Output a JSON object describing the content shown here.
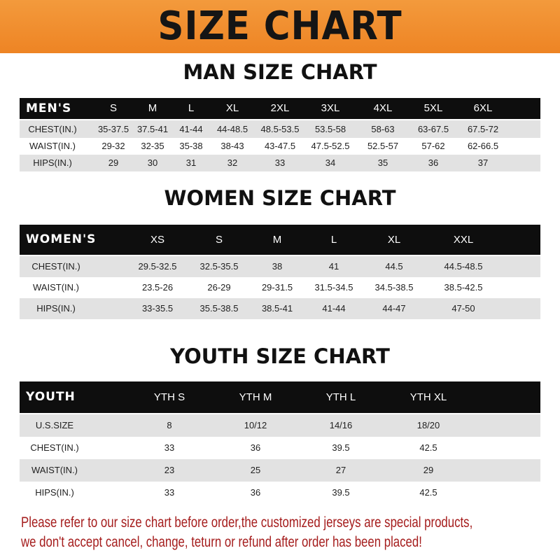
{
  "title": "SIZE CHART",
  "men": {
    "title": "MAN SIZE CHART",
    "header": [
      "MEN'S",
      "S",
      "M",
      "L",
      "XL",
      "2XL",
      "3XL",
      "4XL",
      "5XL",
      "6XL"
    ],
    "rows": [
      [
        "CHEST(IN.)",
        "35-37.5",
        "37.5-41",
        "41-44",
        "44-48.5",
        "48.5-53.5",
        "53.5-58",
        "58-63",
        "63-67.5",
        "67.5-72"
      ],
      [
        "WAIST(IN.)",
        "29-32",
        "32-35",
        "35-38",
        "38-43",
        "43-47.5",
        "47.5-52.5",
        "52.5-57",
        "57-62",
        "62-66.5"
      ],
      [
        "HIPS(IN.)",
        "29",
        "30",
        "31",
        "32",
        "33",
        "34",
        "35",
        "36",
        "37"
      ]
    ]
  },
  "women": {
    "title": "WOMEN SIZE CHART",
    "header": [
      "WOMEN'S",
      "XS",
      "S",
      "M",
      "L",
      "XL",
      "XXL"
    ],
    "rows": [
      [
        "CHEST(IN.)",
        "29.5-32.5",
        "32.5-35.5",
        "38",
        "41",
        "44.5",
        "44.5-48.5"
      ],
      [
        "WAIST(IN.)",
        "23.5-26",
        "26-29",
        "29-31.5",
        "31.5-34.5",
        "34.5-38.5",
        "38.5-42.5"
      ],
      [
        "HIPS(IN.)",
        "33-35.5",
        "35.5-38.5",
        "38.5-41",
        "41-44",
        "44-47",
        "47-50"
      ]
    ]
  },
  "youth": {
    "title": "YOUTH SIZE CHART",
    "header": [
      "YOUTH",
      "YTH S",
      "YTH M",
      "YTH L",
      "YTH XL"
    ],
    "rows": [
      [
        "U.S.SIZE",
        "8",
        "10/12",
        "14/16",
        "18/20"
      ],
      [
        "CHEST(IN.)",
        "33",
        "36",
        "39.5",
        "42.5"
      ],
      [
        "WAIST(IN.)",
        "23",
        "25",
        "27",
        "29"
      ],
      [
        "HIPS(IN.)",
        "33",
        "36",
        "39.5",
        "42.5"
      ]
    ]
  },
  "note": [
    "Please refer to our size chart before order,the customized jerseys are special products,",
    "we don't accept cancel, change, teturn or refund after order has been placed!"
  ],
  "colors": {
    "banner": "#f08a2c",
    "header_row": "#0e0e0e",
    "stripe": "#e2e2e2",
    "note": "#a51d1d"
  }
}
